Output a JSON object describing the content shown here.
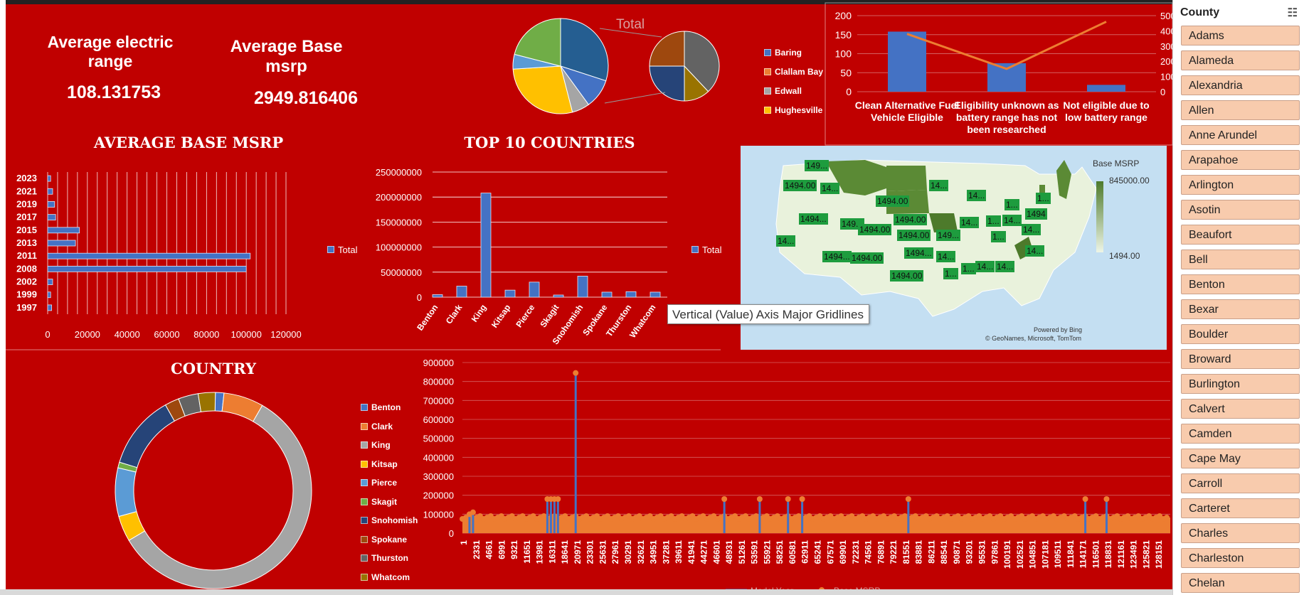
{
  "kpis": {
    "avg_range_label": "Average electric range",
    "avg_range_value": "108.131753",
    "avg_msrp_label": "Average Base msrp",
    "avg_msrp_value": "2949.816406"
  },
  "colors": {
    "background": "#c00000",
    "bar": "#4472c4",
    "orange": "#ed7d31",
    "slicer_item": "#f8cbad"
  },
  "tooltip": "Vertical (Value) Axis Major Gridlines",
  "slicer": {
    "title": "County",
    "icon": "multi-select-icon",
    "items": [
      "Adams",
      "Alameda",
      "Alexandria",
      "Allen",
      "Anne Arundel",
      "Arapahoe",
      "Arlington",
      "Asotin",
      "Beaufort",
      "Bell",
      "Benton",
      "Bexar",
      "Boulder",
      "Broward",
      "Burlington",
      "Calvert",
      "Camden",
      "Cape May",
      "Carroll",
      "Carteret",
      "Charles",
      "Charleston",
      "Chelan"
    ]
  },
  "map": {
    "legend_title": "Base MSRP",
    "legend_max": "845000.00",
    "legend_min": "1494.00",
    "credit1": "Powered by Bing",
    "credit2": "© GeoNames, Microsoft, TomTom",
    "labels": [
      "149...",
      "1494.00",
      "14...",
      "1494.00",
      "14...",
      "14...",
      "1...",
      "1...",
      "1494",
      "1494...",
      "149...",
      "1494.00",
      "1494.00",
      "1494.00",
      "149...",
      "14...",
      "1...",
      "14...",
      "1...",
      "14...",
      "1494...",
      "1494.00",
      "1494...",
      "14...",
      "14...",
      "1494.00",
      "1...",
      "1...",
      "14...",
      "14...",
      "14..."
    ]
  },
  "chart_data": [
    {
      "type": "pie",
      "title": "Total",
      "legend": [
        "Baring",
        "Clallam Bay",
        "Edwall",
        "Hughesville"
      ],
      "primary_values": [
        30,
        10,
        6,
        28,
        5,
        21
      ],
      "secondary_values": [
        38,
        12,
        25,
        25
      ]
    },
    {
      "type": "bar",
      "categories": [
        "Clean Alternative Fuel Vehicle Eligible",
        "Eligibility unknown as battery range has not been researched",
        "Not eligible due to low battery range"
      ],
      "values": [
        158,
        75,
        18
      ],
      "line_values": [
        380,
        150,
        460
      ],
      "ylim": [
        0,
        200
      ],
      "y2lim": [
        0,
        500
      ],
      "yticks": [
        "0",
        "50",
        "100",
        "150",
        "200"
      ],
      "y2ticks": [
        "0",
        "100",
        "200",
        "300",
        "400",
        "500"
      ]
    },
    {
      "type": "bar",
      "title": "AVERAGE BASE MSRP",
      "legend": [
        "Total"
      ],
      "categories": [
        "1997",
        "1999",
        "2002",
        "2008",
        "2011",
        "2013",
        "2015",
        "2017",
        "2019",
        "2021",
        "2023"
      ],
      "values": [
        2000,
        1500,
        2500,
        100000,
        102000,
        14000,
        16000,
        4000,
        3500,
        2500,
        1500
      ],
      "xticks": [
        "0",
        "20000",
        "40000",
        "60000",
        "80000",
        "100000",
        "120000"
      ],
      "xlim": [
        0,
        120000
      ]
    },
    {
      "type": "bar",
      "title": "TOP 10 COUNTRIES",
      "legend": [
        "Total"
      ],
      "categories": [
        "Benton",
        "Clark",
        "King",
        "Kitsap",
        "Pierce",
        "Skagit",
        "Snohomish",
        "Spokane",
        "Thurston",
        "Whatcom"
      ],
      "values": [
        5000000,
        22000000,
        208000000,
        14000000,
        30000000,
        4000000,
        42000000,
        10000000,
        11000000,
        10000000
      ],
      "yticks": [
        "0",
        "50000000",
        "100000000",
        "150000000",
        "200000000",
        "250000000"
      ],
      "ylim": [
        0,
        250000000
      ]
    },
    {
      "type": "pie",
      "title": "COUNTRY",
      "legend": [
        "Benton",
        "Clark",
        "King",
        "Kitsap",
        "Pierce",
        "Skagit",
        "Snohomish",
        "Spokane",
        "Thurston",
        "Whatcom"
      ],
      "values": [
        1.5,
        7,
        62,
        4.5,
        8.5,
        1,
        13,
        2.5,
        3.5,
        3
      ]
    },
    {
      "type": "line",
      "legend": [
        "Model Year",
        "Base MSRP"
      ],
      "yticks": [
        "0",
        "100000",
        "200000",
        "300000",
        "400000",
        "500000",
        "600000",
        "700000",
        "800000",
        "900000"
      ],
      "ylim": [
        0,
        900000
      ],
      "xticks": [
        "1",
        "2331",
        "4661",
        "6991",
        "9321",
        "11651",
        "13981",
        "16311",
        "18641",
        "20971",
        "23301",
        "25631",
        "27961",
        "30291",
        "32621",
        "34951",
        "37281",
        "39611",
        "41941",
        "44271",
        "46601",
        "48931",
        "51261",
        "53591",
        "55921",
        "58251",
        "60581",
        "62911",
        "65241",
        "67571",
        "69901",
        "72231",
        "74561",
        "76891",
        "79221",
        "81551",
        "83881",
        "86211",
        "88541",
        "90871",
        "93201",
        "95531",
        "97861",
        "100191",
        "102521",
        "104851",
        "107181",
        "109511",
        "111841",
        "114171",
        "116501",
        "118831",
        "121161",
        "123491",
        "125821",
        "128151"
      ],
      "spikes": [
        [
          0.01,
          100000
        ],
        [
          0.015,
          110000
        ],
        [
          0.12,
          180000
        ],
        [
          0.125,
          180000
        ],
        [
          0.13,
          180000
        ],
        [
          0.135,
          180000
        ],
        [
          0.16,
          845000
        ],
        [
          0.37,
          180000
        ],
        [
          0.42,
          180000
        ],
        [
          0.46,
          180000
        ],
        [
          0.48,
          180000
        ],
        [
          0.63,
          180000
        ],
        [
          0.88,
          180000
        ],
        [
          0.91,
          180000
        ]
      ]
    }
  ]
}
